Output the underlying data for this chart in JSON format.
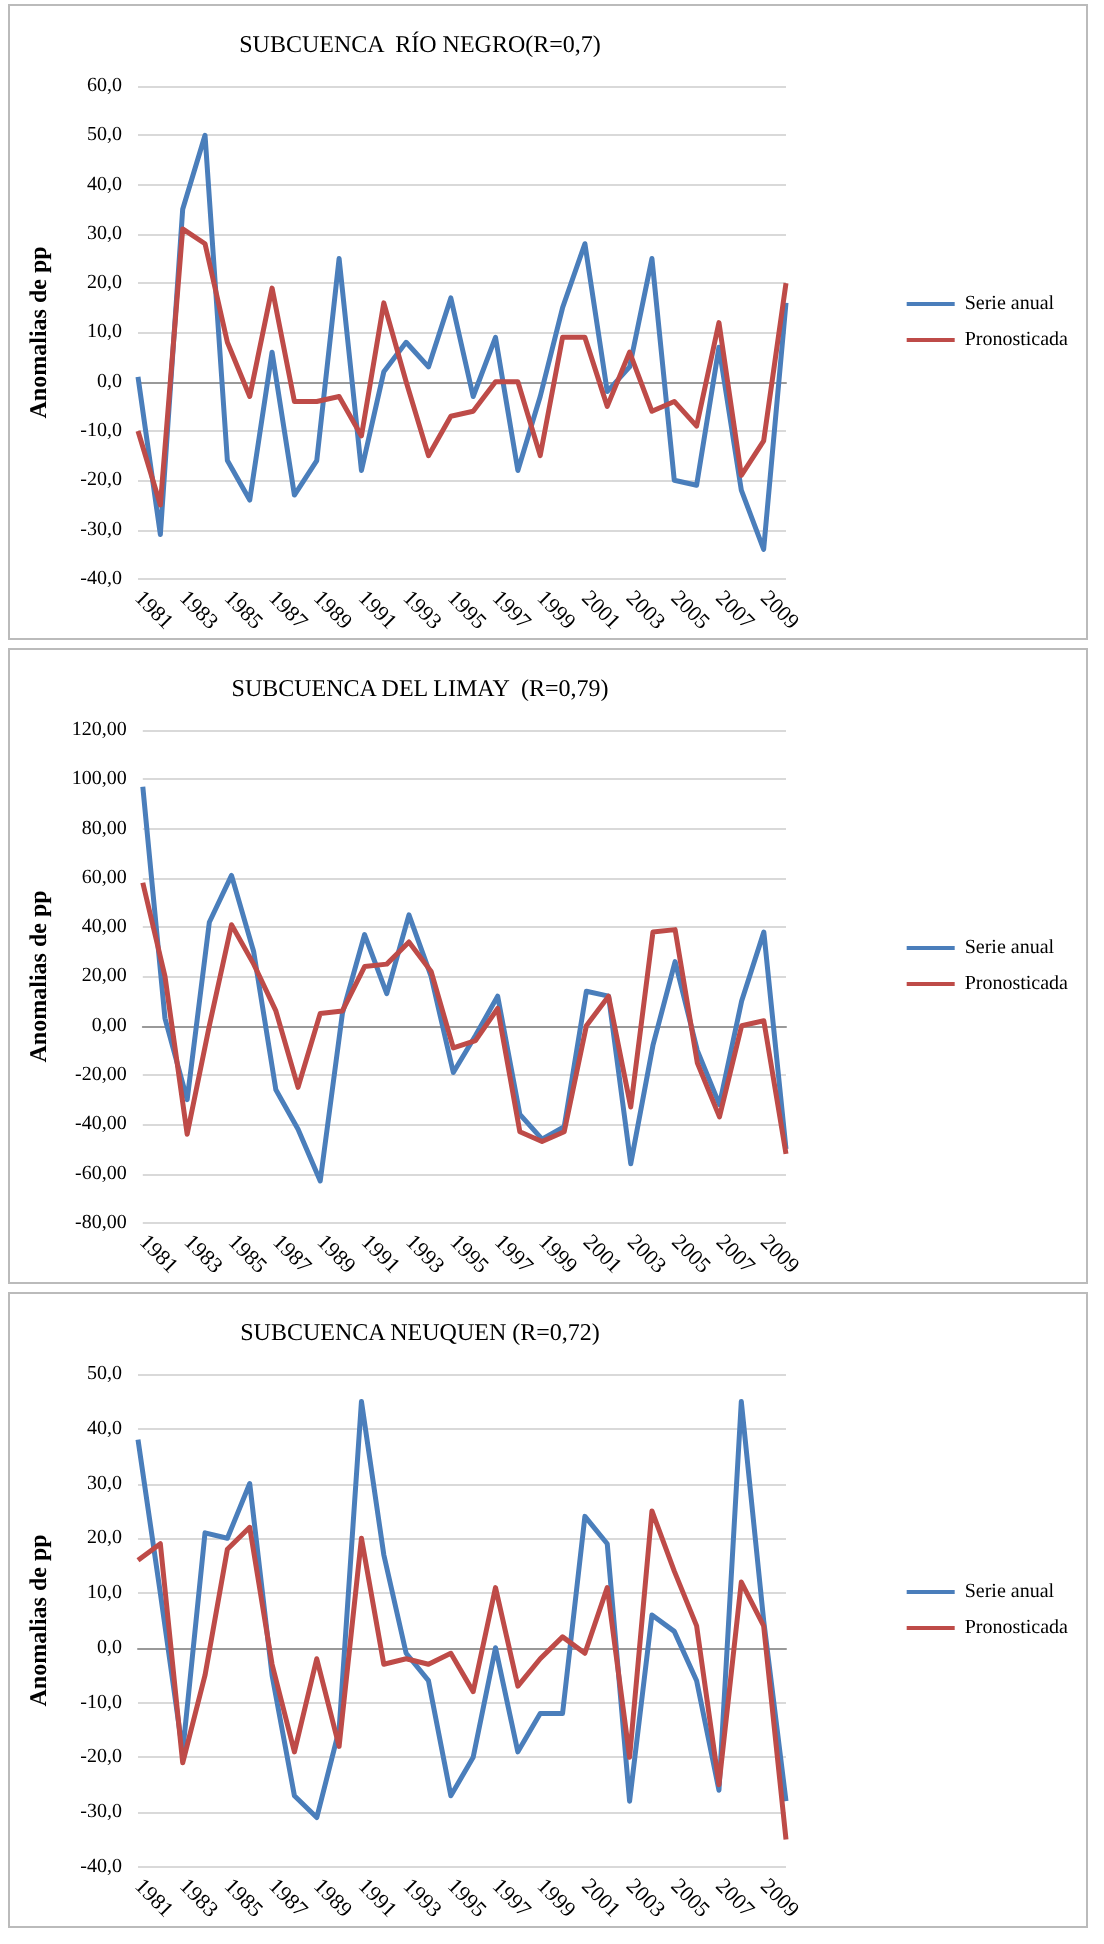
{
  "chart_data": [
    {
      "type": "line",
      "title": "SUBCUENCA  RÍO NEGRO(R=0,7)",
      "ylabel": "Anomalias de pp",
      "categories": [
        "1981",
        null,
        "1983",
        null,
        "1985",
        null,
        "1987",
        null,
        "1989",
        null,
        "1991",
        null,
        "1993",
        null,
        "1995",
        null,
        "1997",
        null,
        "1999",
        null,
        "2001",
        null,
        "2003",
        null,
        "2005",
        null,
        "2007",
        null,
        "2009",
        null
      ],
      "series": [
        {
          "name": "Serie anual",
          "color": "#4a7ebb",
          "values": [
            1,
            -31,
            35,
            50,
            -16,
            -24,
            6,
            -23,
            -16,
            25,
            -18,
            2,
            8,
            3,
            17,
            -3,
            9,
            -18,
            -3,
            15,
            28,
            -2,
            3,
            25,
            -20,
            -21,
            7,
            -22,
            -34,
            16
          ]
        },
        {
          "name": "Pronosticada",
          "color": "#be4b48",
          "values": [
            -10,
            -25,
            31,
            28,
            8,
            -3,
            19,
            -4,
            -4,
            -3,
            -11,
            16,
            0,
            -15,
            -7,
            -6,
            0,
            0,
            -15,
            9,
            9,
            -5,
            6,
            -6,
            -4,
            -9,
            12,
            -19,
            -12,
            20
          ]
        }
      ],
      "ylim": [
        -40,
        60
      ],
      "yticks": [
        {
          "value": -40,
          "label": "-40,0"
        },
        {
          "value": -30,
          "label": "-30,0"
        },
        {
          "value": -20,
          "label": "-20,0"
        },
        {
          "value": -10,
          "label": "-10,0"
        },
        {
          "value": 0,
          "label": "0,0"
        },
        {
          "value": 10,
          "label": "10,0"
        },
        {
          "value": 20,
          "label": "20,0"
        },
        {
          "value": 30,
          "label": "30,0"
        },
        {
          "value": 40,
          "label": "40,0"
        },
        {
          "value": 50,
          "label": "50,0"
        },
        {
          "value": 60,
          "label": "60,0"
        }
      ],
      "grid": "y",
      "legend": "right",
      "marker": "none",
      "line_style": "solid"
    },
    {
      "type": "line",
      "title": "SUBCUENCA DEL LIMAY  (R=0,79)",
      "ylabel": "Anomalias de pp",
      "categories": [
        "1981",
        null,
        "1983",
        null,
        "1985",
        null,
        "1987",
        null,
        "1989",
        null,
        "1991",
        null,
        "1993",
        null,
        "1995",
        null,
        "1997",
        null,
        "1999",
        null,
        "2001",
        null,
        "2003",
        null,
        "2005",
        null,
        "2007",
        null,
        "2009",
        null
      ],
      "series": [
        {
          "name": "Serie anual",
          "color": "#4a7ebb",
          "values": [
            97,
            3,
            -30,
            42,
            61,
            30,
            -26,
            -42,
            -63,
            5,
            37,
            13,
            45,
            20,
            -19,
            -4,
            12,
            -36,
            -46,
            -41,
            14,
            12,
            -56,
            -8,
            26,
            -10,
            -32,
            10,
            38,
            -50
          ]
        },
        {
          "name": "Pronosticada",
          "color": "#be4b48",
          "values": [
            58,
            20,
            -44,
            0,
            41,
            25,
            6,
            -25,
            5,
            6,
            24,
            25,
            34,
            22,
            -9,
            -6,
            7,
            -43,
            -47,
            -43,
            0,
            12,
            -33,
            38,
            39,
            -15,
            -37,
            0,
            2,
            -52
          ]
        }
      ],
      "ylim": [
        -80,
        120
      ],
      "yticks": [
        {
          "value": -80,
          "label": "-80,00"
        },
        {
          "value": -60,
          "label": "-60,00"
        },
        {
          "value": -40,
          "label": "-40,00"
        },
        {
          "value": -20,
          "label": "-20,00"
        },
        {
          "value": 0,
          "label": "0,00"
        },
        {
          "value": 20,
          "label": "20,00"
        },
        {
          "value": 40,
          "label": "40,00"
        },
        {
          "value": 60,
          "label": "60,00"
        },
        {
          "value": 80,
          "label": "80,00"
        },
        {
          "value": 100,
          "label": "100,00"
        },
        {
          "value": 120,
          "label": "120,00"
        }
      ],
      "grid": "y",
      "legend": "right",
      "marker": "none",
      "line_style": "solid"
    },
    {
      "type": "line",
      "title": "SUBCUENCA NEUQUEN (R=0,72)",
      "ylabel": "Anomalias de pp",
      "categories": [
        "1981",
        null,
        "1983",
        null,
        "1985",
        null,
        "1987",
        null,
        "1989",
        null,
        "1991",
        null,
        "1993",
        null,
        "1995",
        null,
        "1997",
        null,
        "1999",
        null,
        "2001",
        null,
        "2003",
        null,
        "2005",
        null,
        "2007",
        null,
        "2009",
        null
      ],
      "series": [
        {
          "name": "Serie anual",
          "color": "#4a7ebb",
          "values": [
            38,
            10,
            -19,
            21,
            20,
            30,
            -5,
            -27,
            -31,
            -15,
            45,
            17,
            -1,
            -6,
            -27,
            -20,
            0,
            -19,
            -12,
            -12,
            24,
            19,
            -28,
            6,
            3,
            -6,
            -26,
            45,
            5,
            -28
          ]
        },
        {
          "name": "Pronosticada",
          "color": "#be4b48",
          "values": [
            16,
            19,
            -21,
            -5,
            18,
            22,
            -3,
            -19,
            -2,
            -18,
            20,
            -3,
            -2,
            -3,
            -1,
            -8,
            11,
            -7,
            -2,
            2,
            -1,
            11,
            -20,
            25,
            14,
            4,
            -25,
            12,
            4,
            -35
          ]
        }
      ],
      "ylim": [
        -40,
        50
      ],
      "yticks": [
        {
          "value": -40,
          "label": "-40,0"
        },
        {
          "value": -30,
          "label": "-30,0"
        },
        {
          "value": -20,
          "label": "-20,0"
        },
        {
          "value": -10,
          "label": "-10,0"
        },
        {
          "value": 0,
          "label": "0,0"
        },
        {
          "value": 10,
          "label": "10,0"
        },
        {
          "value": 20,
          "label": "20,0"
        },
        {
          "value": 30,
          "label": "30,0"
        },
        {
          "value": 40,
          "label": "40,0"
        },
        {
          "value": 50,
          "label": "50,0"
        }
      ],
      "grid": "y",
      "legend": "right",
      "marker": "none",
      "line_style": "solid"
    }
  ]
}
